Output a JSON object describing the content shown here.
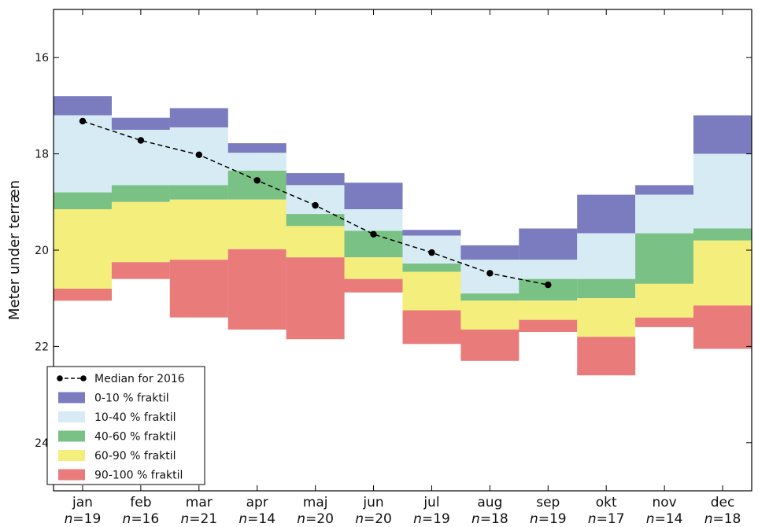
{
  "chart_data": {
    "type": "bar",
    "ylabel": "Meter under terræn",
    "y_inverted": true,
    "ylim": [
      15,
      25
    ],
    "yticks": [
      16,
      18,
      20,
      22,
      24
    ],
    "months": [
      "jan",
      "feb",
      "mar",
      "apr",
      "maj",
      "jun",
      "jul",
      "aug",
      "sep",
      "okt",
      "nov",
      "dec"
    ],
    "counts": [
      "n=19",
      "n=16",
      "n=21",
      "n=14",
      "n=20",
      "n=20",
      "n=19",
      "n=18",
      "n=19",
      "n=17",
      "n=14",
      "n=18"
    ],
    "boundaries": {
      "names": [
        "p0",
        "p10",
        "p40",
        "p60",
        "p90",
        "p100"
      ],
      "values": [
        [
          16.8,
          17.2,
          18.8,
          19.15,
          20.8,
          21.05
        ],
        [
          17.25,
          17.5,
          18.65,
          19.0,
          20.25,
          20.6
        ],
        [
          17.05,
          17.45,
          18.65,
          18.95,
          20.2,
          21.4
        ],
        [
          17.78,
          17.98,
          18.35,
          18.95,
          19.98,
          21.65
        ],
        [
          18.4,
          18.65,
          19.25,
          19.5,
          20.15,
          21.85
        ],
        [
          18.6,
          19.15,
          19.6,
          20.15,
          20.6,
          20.88
        ],
        [
          19.58,
          19.7,
          20.28,
          20.45,
          21.25,
          21.95
        ],
        [
          19.9,
          20.2,
          20.9,
          21.05,
          21.65,
          22.3
        ],
        [
          19.55,
          20.2,
          20.6,
          21.05,
          21.45,
          21.7
        ],
        [
          18.85,
          19.65,
          20.6,
          21.0,
          21.8,
          22.6
        ],
        [
          18.65,
          18.85,
          19.65,
          20.7,
          21.4,
          21.6
        ],
        [
          17.2,
          18.0,
          19.55,
          19.8,
          21.15,
          22.05
        ]
      ]
    },
    "series": [
      {
        "name": "0-10 % fraktil",
        "color": "#7b7bbf"
      },
      {
        "name": "10-40 % fraktil",
        "color": "#d6ebf4"
      },
      {
        "name": "40-60 % fraktil",
        "color": "#79c184"
      },
      {
        "name": "60-90 % fraktil",
        "color": "#f4ee7c"
      },
      {
        "name": "90-100 % fraktil",
        "color": "#ea7b7b"
      }
    ],
    "median": {
      "name": "Median for 2016",
      "months": [
        "jan",
        "feb",
        "mar",
        "apr",
        "maj",
        "jun",
        "jul",
        "aug",
        "sep"
      ],
      "values": [
        17.32,
        17.72,
        18.02,
        18.55,
        19.07,
        19.67,
        20.05,
        20.48,
        20.72
      ]
    },
    "legend_position": "bottom-left",
    "grid": false
  }
}
